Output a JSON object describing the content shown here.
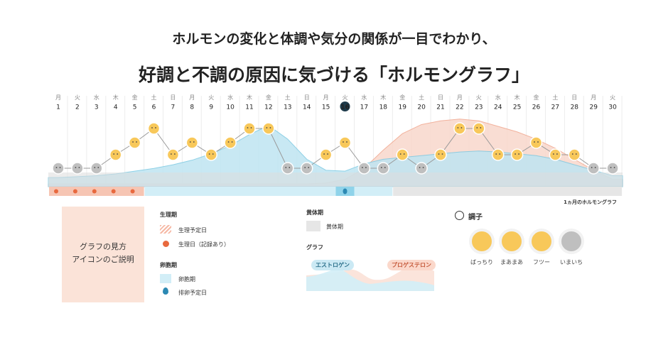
{
  "headline": {
    "line1": "ホルモンの変化と体調や気分の関係が一目でわかり、",
    "line2": "好調と不調の原因に気づける「ホルモングラフ」"
  },
  "calendar": {
    "weekdays": [
      "月",
      "火",
      "水",
      "木",
      "金",
      "土",
      "日",
      "月",
      "火",
      "水",
      "木",
      "金",
      "土",
      "日",
      "月",
      "火",
      "水",
      "木",
      "金",
      "土",
      "日",
      "月",
      "火",
      "水",
      "木",
      "金",
      "土",
      "日",
      "月",
      "火"
    ],
    "dates": [
      "1",
      "2",
      "3",
      "4",
      "5",
      "6",
      "7",
      "8",
      "9",
      "10",
      "11",
      "12",
      "13",
      "14",
      "15",
      "16",
      "17",
      "18",
      "19",
      "20",
      "21",
      "22",
      "23",
      "24",
      "25",
      "26",
      "27",
      "28",
      "29",
      "30"
    ],
    "today_index": 15,
    "sunday_color": "#e35a4e",
    "mood_by_day": [
      "bad",
      "bad",
      "bad",
      "normal",
      "good",
      "great",
      "normal",
      "good",
      "normal",
      "good",
      "great",
      "great",
      "bad",
      "bad",
      "normal",
      "good",
      "bad",
      "bad",
      "normal",
      "bad",
      "normal",
      "great",
      "great",
      "normal",
      "normal",
      "good",
      "normal",
      "normal",
      "bad",
      "bad"
    ]
  },
  "chart_data": {
    "type": "area",
    "x": [
      "1",
      "2",
      "3",
      "4",
      "5",
      "6",
      "7",
      "8",
      "9",
      "10",
      "11",
      "12",
      "13",
      "14",
      "15",
      "16",
      "17",
      "18",
      "19",
      "20",
      "21",
      "22",
      "23",
      "24",
      "25",
      "26",
      "27",
      "28",
      "29",
      "30"
    ],
    "series": [
      {
        "name": "エストロゲン",
        "color": "#bfe5f2",
        "values": [
          10,
          11,
          12,
          14,
          17,
          20,
          24,
          29,
          36,
          45,
          57,
          67,
          52,
          30,
          18,
          17,
          25,
          30,
          32,
          34,
          36,
          38,
          39,
          38,
          36,
          34,
          30,
          24,
          18,
          12
        ]
      },
      {
        "name": "プロゲステロン",
        "color": "#f9d8cc",
        "values": [
          3,
          3,
          3,
          3,
          3,
          3,
          3,
          3,
          3,
          3,
          3,
          3,
          3,
          3,
          4,
          8,
          20,
          40,
          58,
          68,
          72,
          74,
          72,
          66,
          60,
          52,
          42,
          30,
          18,
          8
        ]
      }
    ],
    "phases": [
      {
        "name": "生理期",
        "start_day": 1,
        "end_day": 5,
        "color": "#f6c5b3"
      },
      {
        "name": "卵胞期",
        "start_day": 6,
        "end_day": 18,
        "color": "#d2eef7"
      },
      {
        "name": "黄体期",
        "start_day": 19,
        "end_day": 30,
        "color": "#e6e6e6"
      }
    ],
    "ovulation_day": 16,
    "caption": "1ヵ月のホルモングラフ"
  },
  "legend": {
    "box_line1": "グラフの見方",
    "box_line2": "アイコンのご説明",
    "menstrual_heading": "生理期",
    "menstrual_expected": "生理予定日",
    "menstrual_day": "生理日（記録あり）",
    "follicular_heading": "卵胞期",
    "follicular_label": "卵胞期",
    "ovulation_label": "排卵予定日",
    "luteal_heading": "黄体期",
    "luteal_label": "黄体期",
    "graph_heading": "グラフ",
    "estrogen_label": "エストロゲン",
    "progesterone_label": "プロゲステロン",
    "mood_heading": "調子",
    "moods": [
      "ばっちり",
      "まあまあ",
      "フツー",
      "いまいち"
    ]
  },
  "colors": {
    "estrogen": "#bfe5f2",
    "estrogen_line": "#7cc9e2",
    "progesterone": "#f9d8cc",
    "progesterone_line": "#f0a58c",
    "mood_good": "#f8c85a",
    "mood_bad": "#bfbfbf",
    "today": "#1e3a4a"
  }
}
